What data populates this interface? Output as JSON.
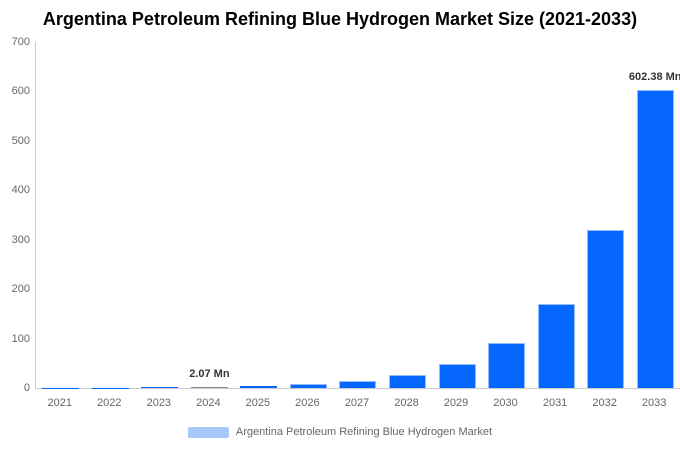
{
  "title": "Argentina Petroleum Refining Blue Hydrogen Market Size (2021-2033)",
  "legend": {
    "label": "Argentina Petroleum Refining Blue Hydrogen Market",
    "swatch_color": "#a6c9fb"
  },
  "chart_data": {
    "type": "bar",
    "title": "Argentina Petroleum Refining Blue Hydrogen Market Size (2021-2033)",
    "categories": [
      "2021",
      "2022",
      "2023",
      "2024",
      "2025",
      "2026",
      "2027",
      "2028",
      "2029",
      "2030",
      "2031",
      "2032",
      "2033"
    ],
    "values": [
      0.3,
      0.6,
      1.1,
      2.07,
      3.9,
      7.3,
      13.7,
      25.8,
      48.4,
      90.9,
      170.6,
      320.4,
      602.38
    ],
    "unit": "Mn",
    "data_labels": [
      {
        "category": "2024",
        "text": "2.07 Mn"
      },
      {
        "category": "2033",
        "text": "602.38 Mn"
      }
    ],
    "xlabel": "",
    "ylabel": "",
    "ylim": [
      0,
      700
    ],
    "yticks": [
      0,
      100,
      200,
      300,
      400,
      500,
      600,
      700
    ],
    "grid": false,
    "legend_position": "bottom",
    "colors": {
      "bar": "#0567fe",
      "bar_border": "#94bdfe",
      "highlight_bar": "#8a8a8a",
      "highlight_border": "#adadad",
      "highlight_category": "2024",
      "axis_line": "#cccccc",
      "tick_text": "#666666",
      "data_label_text": "#333333"
    }
  }
}
